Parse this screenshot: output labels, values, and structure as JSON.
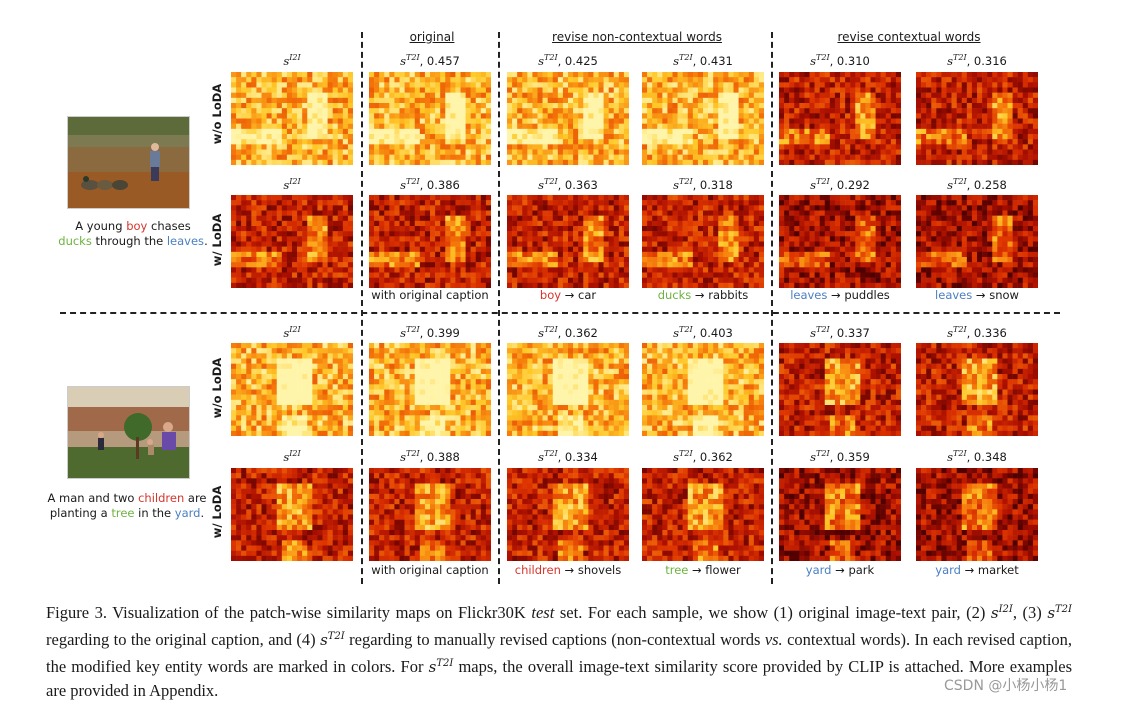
{
  "headers": {
    "original": "original",
    "noncontextual": "revise non-contextual words",
    "contextual": "revise contextual words"
  },
  "row_labels": {
    "without": "w/o LoDA",
    "with": "w/ LoDA"
  },
  "score_symbols": {
    "i2i": "s",
    "i2i_sup": "I2I",
    "t2i": "s",
    "t2i_sup": "T2I"
  },
  "samples": [
    {
      "caption_parts": [
        {
          "text": "A young ",
          "color": ""
        },
        {
          "text": "boy",
          "color": "red"
        },
        {
          "text": " chases",
          "color": ""
        },
        {
          "text": "ducks",
          "color": "green",
          "newline": true
        },
        {
          "text": " through the ",
          "color": ""
        },
        {
          "text": "leaves",
          "color": "blue"
        },
        {
          "text": ".",
          "color": ""
        }
      ],
      "without_scores": [
        "0.457",
        "0.425",
        "0.431",
        "0.310",
        "0.316"
      ],
      "with_scores": [
        "0.386",
        "0.363",
        "0.318",
        "0.292",
        "0.258"
      ],
      "column_captions": [
        {
          "from": "",
          "to": "with original caption",
          "color": ""
        },
        {
          "from": "boy",
          "to": "car",
          "color": "red"
        },
        {
          "from": "ducks",
          "to": "rabbits",
          "color": "green"
        },
        {
          "from": "leaves",
          "to": "puddles",
          "color": "blue"
        },
        {
          "from": "leaves",
          "to": "snow",
          "color": "blue"
        }
      ]
    },
    {
      "caption_parts": [
        {
          "text": "A man and two ",
          "color": ""
        },
        {
          "text": "children",
          "color": "red"
        },
        {
          "text": " are",
          "color": ""
        },
        {
          "text": "planting a ",
          "color": "",
          "newline": true
        },
        {
          "text": "tree",
          "color": "green"
        },
        {
          "text": " in the ",
          "color": ""
        },
        {
          "text": "yard",
          "color": "blue"
        },
        {
          "text": ".",
          "color": ""
        }
      ],
      "without_scores": [
        "0.399",
        "0.362",
        "0.403",
        "0.337",
        "0.336"
      ],
      "with_scores": [
        "0.388",
        "0.334",
        "0.362",
        "0.359",
        "0.348"
      ],
      "column_captions": [
        {
          "from": "",
          "to": "with original caption",
          "color": ""
        },
        {
          "from": "children",
          "to": "shovels",
          "color": "red"
        },
        {
          "from": "tree",
          "to": "flower",
          "color": "green"
        },
        {
          "from": "yard",
          "to": "park",
          "color": "blue"
        },
        {
          "from": "yard",
          "to": "market",
          "color": "blue"
        }
      ]
    }
  ],
  "arrow": "→",
  "figure_caption": {
    "label": "Figure 3.",
    "p1": "Visualization of the patch-wise similarity maps on Flickr30K",
    "test": "test",
    "p2": "set.  For each sample, we show (1) original image-text pair, (2)",
    "p3": ", (3)",
    "p4": "regarding to the original caption, and (4)",
    "p5": "regarding to manually revised captions (non-contextual words",
    "vs": "vs.",
    "p6": "contextual words).  In each revised caption, the modified key entity words are marked in colors.  For",
    "p7": "maps, the overall image-text similarity score provided by CLIP is attached. More examples are provided in Appendix."
  },
  "watermark": "CSDN @小杨小杨1",
  "colors": {
    "red": "#d9342b",
    "green": "#6db33f",
    "blue": "#4a7fc1"
  }
}
